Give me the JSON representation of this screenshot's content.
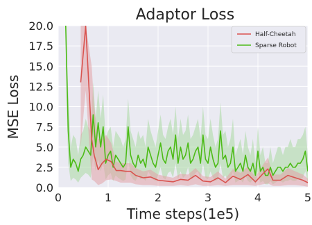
{
  "chart_data": {
    "type": "line",
    "title": "Adaptor Loss",
    "xlabel": "Time steps(1e5)",
    "ylabel": "MSE Loss",
    "xlim": [
      0,
      5
    ],
    "ylim": [
      0,
      20
    ],
    "x_ticks": [
      "0",
      "1",
      "2",
      "3",
      "4",
      "5"
    ],
    "y_ticks": [
      "0.0",
      "2.5",
      "5.0",
      "7.5",
      "10.0",
      "12.5",
      "15.0",
      "17.5",
      "20.0"
    ],
    "grid": true,
    "legend_position": "top-right",
    "background": "#eaeaf2",
    "series": [
      {
        "name": "Half-Cheetah",
        "color": "#d9534f",
        "band_color": "#e2a3a7",
        "x": [
          0.45,
          0.55,
          0.67,
          0.72,
          0.8,
          0.88,
          0.96,
          1.06,
          1.16,
          1.25,
          1.35,
          1.45,
          1.55,
          1.7,
          1.85,
          2.0,
          2.15,
          2.3,
          2.45,
          2.6,
          2.75,
          2.9,
          3.05,
          3.2,
          3.35,
          3.5,
          3.65,
          3.8,
          3.95,
          4.1,
          4.2,
          4.3,
          4.45,
          4.6,
          4.75,
          4.9,
          5.0
        ],
        "y": [
          13.0,
          20.0,
          6.0,
          4.0,
          2.2,
          3.0,
          3.5,
          3.2,
          2.1,
          2.1,
          2.0,
          2.0,
          1.5,
          1.2,
          1.3,
          0.9,
          0.8,
          0.7,
          1.0,
          0.9,
          1.5,
          0.8,
          0.7,
          1.2,
          0.6,
          1.4,
          1.0,
          1.6,
          0.7,
          1.7,
          2.3,
          0.9,
          0.9,
          1.5,
          1.2,
          0.9,
          0.6
        ],
        "lower": [
          5.0,
          12.0,
          1.0,
          0.8,
          0.3,
          0.5,
          0.9,
          1.0,
          0.8,
          0.6,
          0.6,
          0.6,
          0.4,
          0.3,
          0.3,
          0.2,
          0.2,
          0.2,
          0.3,
          0.2,
          0.4,
          0.2,
          0.2,
          0.3,
          0.2,
          0.3,
          0.3,
          0.3,
          0.2,
          0.4,
          0.5,
          0.2,
          0.2,
          0.3,
          0.3,
          0.2,
          0.1
        ],
        "upper": [
          20.0,
          20.0,
          15.0,
          10.0,
          6.0,
          6.0,
          6.5,
          5.5,
          3.2,
          3.0,
          3.0,
          3.0,
          2.4,
          2.0,
          2.2,
          1.6,
          1.4,
          1.2,
          1.7,
          1.6,
          2.4,
          1.4,
          1.3,
          2.0,
          1.1,
          2.3,
          1.8,
          2.6,
          1.3,
          2.8,
          3.7,
          1.6,
          1.6,
          2.4,
          2.0,
          1.6,
          1.1
        ]
      },
      {
        "name": "Sparse Robot",
        "color": "#4cbb17",
        "band_color": "#a9d9a3",
        "x": [
          0.15,
          0.2,
          0.25,
          0.3,
          0.35,
          0.4,
          0.45,
          0.5,
          0.55,
          0.6,
          0.65,
          0.7,
          0.75,
          0.8,
          0.85,
          0.9,
          0.95,
          1.0,
          1.05,
          1.1,
          1.15,
          1.2,
          1.25,
          1.3,
          1.35,
          1.4,
          1.45,
          1.5,
          1.55,
          1.6,
          1.65,
          1.7,
          1.75,
          1.8,
          1.85,
          1.9,
          1.95,
          2.0,
          2.05,
          2.1,
          2.15,
          2.2,
          2.25,
          2.3,
          2.35,
          2.4,
          2.45,
          2.5,
          2.55,
          2.6,
          2.65,
          2.7,
          2.75,
          2.8,
          2.85,
          2.9,
          2.95,
          3.0,
          3.05,
          3.1,
          3.15,
          3.2,
          3.25,
          3.3,
          3.35,
          3.4,
          3.45,
          3.5,
          3.55,
          3.6,
          3.65,
          3.7,
          3.75,
          3.8,
          3.85,
          3.9,
          3.95,
          4.0,
          4.05,
          4.1,
          4.15,
          4.2,
          4.25,
          4.3,
          4.35,
          4.4,
          4.45,
          4.5,
          4.55,
          4.6,
          4.65,
          4.7,
          4.75,
          4.8,
          4.85,
          4.9,
          4.95,
          5.0
        ],
        "y": [
          20.0,
          7.0,
          2.5,
          3.5,
          3.0,
          2.0,
          3.5,
          4.0,
          5.0,
          4.5,
          4.0,
          9.0,
          5.0,
          8.0,
          5.0,
          7.5,
          3.0,
          4.0,
          4.5,
          2.5,
          4.0,
          3.5,
          3.0,
          2.5,
          3.0,
          7.5,
          4.0,
          3.0,
          2.5,
          4.0,
          3.0,
          3.5,
          2.5,
          5.0,
          4.0,
          3.0,
          2.5,
          4.0,
          5.5,
          3.5,
          3.0,
          4.5,
          5.0,
          3.5,
          6.5,
          3.0,
          5.0,
          3.5,
          4.0,
          5.5,
          3.0,
          3.5,
          4.5,
          5.0,
          3.0,
          6.5,
          3.5,
          3.0,
          5.0,
          3.5,
          2.5,
          3.0,
          7.0,
          3.5,
          4.0,
          2.5,
          3.0,
          5.0,
          2.0,
          2.5,
          3.0,
          2.0,
          4.0,
          2.5,
          2.0,
          3.0,
          1.5,
          4.5,
          2.0,
          2.5,
          1.5,
          1.5,
          2.5,
          1.5,
          2.0,
          2.5,
          2.5,
          2.0,
          2.5,
          2.5,
          3.0,
          2.5,
          2.5,
          3.0,
          3.0,
          3.5,
          4.5,
          2.0
        ],
        "lower": [
          15.0,
          3.0,
          0.8,
          1.2,
          1.0,
          0.6,
          1.2,
          1.5,
          1.8,
          1.6,
          1.2,
          4.0,
          2.0,
          3.5,
          2.0,
          3.0,
          1.0,
          1.5,
          1.8,
          0.8,
          1.5,
          1.2,
          1.0,
          0.8,
          1.0,
          3.5,
          1.5,
          1.0,
          0.8,
          1.5,
          1.0,
          1.2,
          0.8,
          2.0,
          1.5,
          1.0,
          0.8,
          1.5,
          2.5,
          1.2,
          1.0,
          1.8,
          2.0,
          1.2,
          3.0,
          1.0,
          2.0,
          1.2,
          1.5,
          2.5,
          1.0,
          1.2,
          1.8,
          2.0,
          1.0,
          3.0,
          1.2,
          1.0,
          2.0,
          1.2,
          0.8,
          1.0,
          3.0,
          1.2,
          1.5,
          0.8,
          1.0,
          2.0,
          0.6,
          0.8,
          1.0,
          0.6,
          1.5,
          0.8,
          0.6,
          1.0,
          0.4,
          2.0,
          0.6,
          0.8,
          0.4,
          0.4,
          0.8,
          0.4,
          0.6,
          0.8,
          0.8,
          0.6,
          0.8,
          0.8,
          1.0,
          0.8,
          0.8,
          1.0,
          1.0,
          1.2,
          2.0,
          0.6
        ],
        "upper": [
          20.0,
          12.0,
          5.0,
          6.5,
          6.0,
          4.0,
          6.5,
          7.0,
          8.5,
          7.5,
          7.0,
          13.0,
          8.5,
          12.0,
          8.5,
          11.5,
          6.0,
          7.0,
          7.5,
          5.0,
          7.0,
          6.5,
          6.0,
          5.0,
          6.0,
          11.0,
          7.0,
          6.0,
          5.0,
          7.0,
          6.0,
          6.5,
          5.0,
          8.5,
          7.0,
          6.0,
          5.0,
          7.0,
          9.0,
          6.5,
          6.0,
          7.5,
          8.5,
          6.5,
          10.0,
          6.0,
          8.5,
          6.5,
          7.0,
          9.0,
          6.0,
          6.5,
          7.5,
          8.5,
          6.0,
          10.0,
          6.5,
          6.0,
          8.5,
          6.5,
          5.0,
          6.0,
          10.5,
          6.5,
          7.0,
          5.0,
          6.0,
          8.5,
          4.0,
          5.0,
          6.0,
          4.0,
          7.0,
          5.0,
          4.0,
          6.0,
          3.0,
          7.5,
          4.0,
          5.0,
          3.0,
          3.0,
          5.0,
          3.0,
          4.0,
          5.0,
          5.0,
          4.0,
          5.0,
          5.0,
          6.0,
          5.0,
          5.0,
          6.0,
          6.0,
          6.5,
          7.5,
          4.0
        ]
      }
    ]
  }
}
